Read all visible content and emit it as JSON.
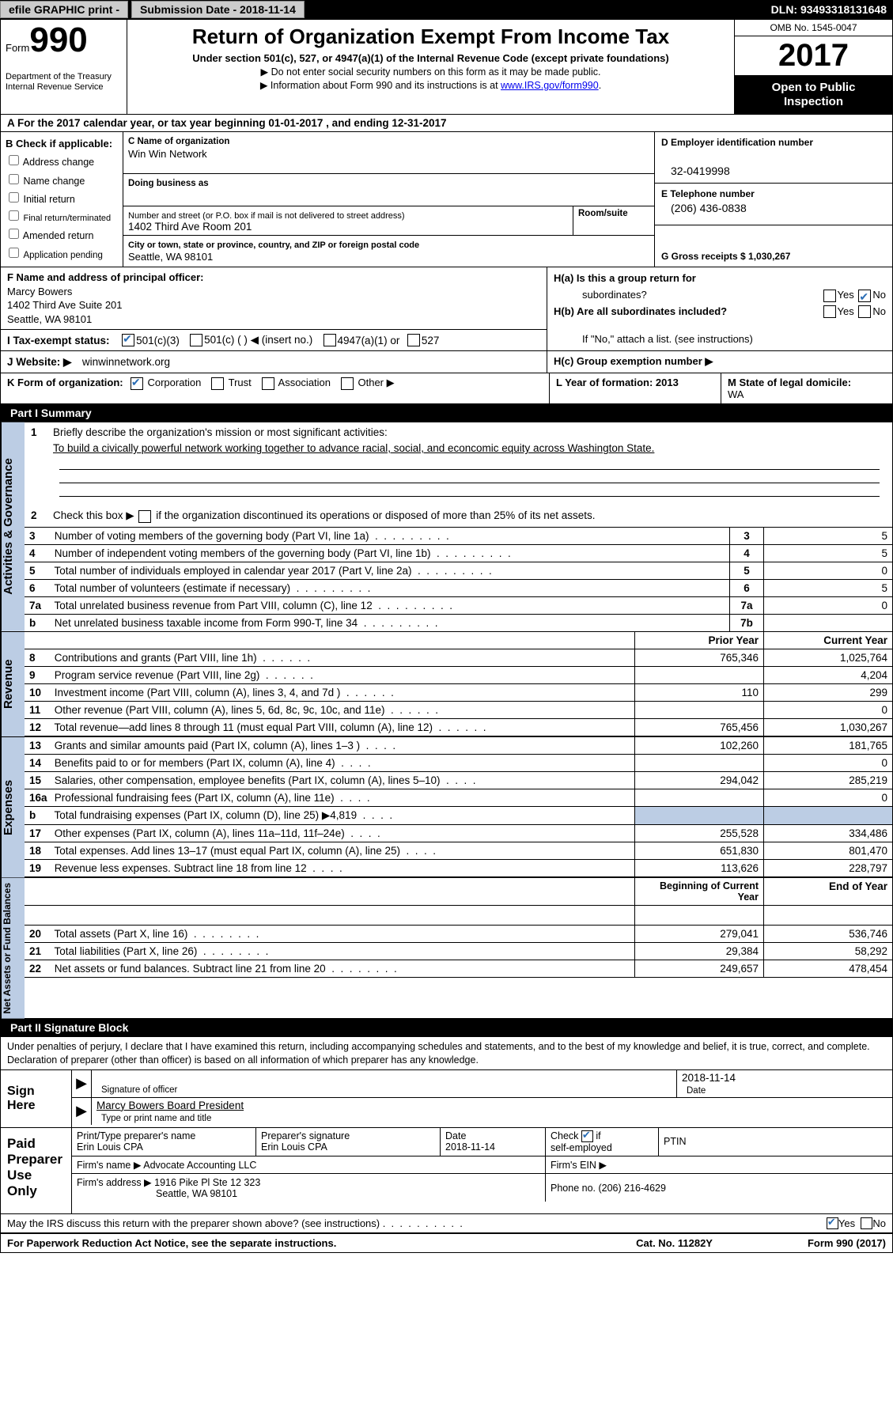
{
  "topbar": {
    "efile": "efile GRAPHIC print -",
    "submission_label": "Submission Date - 2018-11-14",
    "dln_label": "DLN: 93493318131648"
  },
  "header": {
    "form_word": "Form",
    "form_num": "990",
    "dept1": "Department of the Treasury",
    "dept2": "Internal Revenue Service",
    "title": "Return of Organization Exempt From Income Tax",
    "sub": "Under section 501(c), 527, or 4947(a)(1) of the Internal Revenue Code (except private foundations)",
    "note1": "▶ Do not enter social security numbers on this form as it may be made public.",
    "note2_pre": "▶ Information about Form 990 and its instructions is at ",
    "note2_link": "www.IRS.gov/form990",
    "note2_post": ".",
    "omb": "OMB No. 1545-0047",
    "year": "2017",
    "open1": "Open to Public",
    "open2": "Inspection"
  },
  "rowA": "A  For the 2017 calendar year, or tax year beginning 01-01-2017   , and ending 12-31-2017",
  "colB": {
    "label": "B Check if applicable:",
    "items": [
      "Address change",
      "Name change",
      "Initial return",
      "Final return/terminated",
      "Amended return",
      "Application pending"
    ]
  },
  "colC": {
    "name_lab": "C Name of organization",
    "name_val": "Win Win Network",
    "dba_lab": "Doing business as",
    "addr_lab": "Number and street (or P.O. box if mail is not delivered to street address)",
    "addr_val": "1402 Third Ave Room 201",
    "suite_lab": "Room/suite",
    "city_lab": "City or town, state or province, country, and ZIP or foreign postal code",
    "city_val": "Seattle, WA  98101"
  },
  "colD": {
    "ein_lab": "D Employer identification number",
    "ein_val": "32-0419998",
    "tel_lab": "E Telephone number",
    "tel_val": "(206) 436-0838",
    "gross_lab": "G Gross receipts $ 1,030,267"
  },
  "colF": {
    "lab": "F Name and address of principal officer:",
    "l1": "Marcy Bowers",
    "l2": "1402 Third Ave Suite 201",
    "l3": "Seattle, WA  98101"
  },
  "colH": {
    "ha": "H(a)  Is this a group return for",
    "ha2": "subordinates?",
    "hb": "H(b)  Are all subordinates included?",
    "hb_note": "If \"No,\" attach a list. (see instructions)",
    "hc": "H(c)  Group exemption number ▶",
    "yes": "Yes",
    "no": "No"
  },
  "rowI": {
    "lab": "I  Tax-exempt status:",
    "o1": "501(c)(3)",
    "o2": "501(c) (   ) ◀ (insert no.)",
    "o3": "4947(a)(1) or",
    "o4": "527"
  },
  "rowJ": {
    "lab": "J  Website: ▶",
    "val": "winwinnetwork.org"
  },
  "rowK": {
    "lab": "K Form of organization:",
    "o1": "Corporation",
    "o2": "Trust",
    "o3": "Association",
    "o4": "Other ▶"
  },
  "rowL": {
    "l_lab": "L Year of formation: 2013",
    "m_lab": "M State of legal domicile:",
    "m_val": "WA"
  },
  "part1": {
    "header": "Part I      Summary",
    "l1": "Briefly describe the organization's mission or most significant activities:",
    "l1_val": "To build a civically powerful network working together to advance racial, social, and econcomic equity across Washington State.",
    "l2": "Check this box ▶         if the organization discontinued its operations or disposed of more than 25% of its net assets.",
    "gov_rows": [
      {
        "n": "3",
        "d": "Number of voting members of the governing body (Part VI, line 1a)",
        "c": "3",
        "v": "5"
      },
      {
        "n": "4",
        "d": "Number of independent voting members of the governing body (Part VI, line 1b)",
        "c": "4",
        "v": "5"
      },
      {
        "n": "5",
        "d": "Total number of individuals employed in calendar year 2017 (Part V, line 2a)",
        "c": "5",
        "v": "0"
      },
      {
        "n": "6",
        "d": "Total number of volunteers (estimate if necessary)",
        "c": "6",
        "v": "5"
      },
      {
        "n": "7a",
        "d": "Total unrelated business revenue from Part VIII, column (C), line 12",
        "c": "7a",
        "v": "0"
      },
      {
        "n": "b",
        "d": "Net unrelated business taxable income from Form 990-T, line 34",
        "c": "7b",
        "v": ""
      }
    ],
    "rev_header": {
      "py": "Prior Year",
      "cy": "Current Year"
    },
    "rev_rows": [
      {
        "n": "8",
        "d": "Contributions and grants (Part VIII, line 1h)",
        "py": "765,346",
        "cy": "1,025,764"
      },
      {
        "n": "9",
        "d": "Program service revenue (Part VIII, line 2g)",
        "py": "",
        "cy": "4,204"
      },
      {
        "n": "10",
        "d": "Investment income (Part VIII, column (A), lines 3, 4, and 7d )",
        "py": "110",
        "cy": "299"
      },
      {
        "n": "11",
        "d": "Other revenue (Part VIII, column (A), lines 5, 6d, 8c, 9c, 10c, and 11e)",
        "py": "",
        "cy": "0"
      },
      {
        "n": "12",
        "d": "Total revenue—add lines 8 through 11 (must equal Part VIII, column (A), line 12)",
        "py": "765,456",
        "cy": "1,030,267"
      }
    ],
    "exp_rows": [
      {
        "n": "13",
        "d": "Grants and similar amounts paid (Part IX, column (A), lines 1–3 )",
        "py": "102,260",
        "cy": "181,765"
      },
      {
        "n": "14",
        "d": "Benefits paid to or for members (Part IX, column (A), line 4)",
        "py": "",
        "cy": "0"
      },
      {
        "n": "15",
        "d": "Salaries, other compensation, employee benefits (Part IX, column (A), lines 5–10)",
        "py": "294,042",
        "cy": "285,219"
      },
      {
        "n": "16a",
        "d": "Professional fundraising fees (Part IX, column (A), line 11e)",
        "py": "",
        "cy": "0"
      },
      {
        "n": "b",
        "d": "Total fundraising expenses (Part IX, column (D), line 25) ▶4,819",
        "py": "SHADE",
        "cy": "SHADE"
      },
      {
        "n": "17",
        "d": "Other expenses (Part IX, column (A), lines 11a–11d, 11f–24e)",
        "py": "255,528",
        "cy": "334,486"
      },
      {
        "n": "18",
        "d": "Total expenses. Add lines 13–17 (must equal Part IX, column (A), line 25)",
        "py": "651,830",
        "cy": "801,470"
      },
      {
        "n": "19",
        "d": "Revenue less expenses. Subtract line 18 from line 12",
        "py": "113,626",
        "cy": "228,797"
      }
    ],
    "net_header": {
      "py": "Beginning of Current Year",
      "cy": "End of Year"
    },
    "net_rows": [
      {
        "n": "20",
        "d": "Total assets (Part X, line 16)",
        "py": "279,041",
        "cy": "536,746"
      },
      {
        "n": "21",
        "d": "Total liabilities (Part X, line 26)",
        "py": "29,384",
        "cy": "58,292"
      },
      {
        "n": "22",
        "d": "Net assets or fund balances. Subtract line 21 from line 20",
        "py": "249,657",
        "cy": "478,454"
      }
    ]
  },
  "part2": {
    "header": "Part II     Signature Block",
    "declaration": "Under penalties of perjury, I declare that I have examined this return, including accompanying schedules and statements, and to the best of my knowledge and belief, it is true, correct, and complete. Declaration of preparer (other than officer) is based on all information of which preparer has any knowledge.",
    "sign_here": "Sign Here",
    "sig_officer": "Signature of officer",
    "sig_date": "2018-11-14",
    "date_lab": "Date",
    "name_title": "Marcy Bowers  Board President",
    "name_lab": "Type or print name and title",
    "paid": "Paid Preparer Use Only",
    "prep_name_lab": "Print/Type preparer's name",
    "prep_name": "Erin Louis CPA",
    "prep_sig_lab": "Preparer's signature",
    "prep_sig": "Erin Louis CPA",
    "prep_date_lab": "Date",
    "prep_date": "2018-11-14",
    "self_emp": "Check         if self-employed",
    "ptin": "PTIN",
    "firm_name_lab": "Firm's name      ▶",
    "firm_name": "Advocate Accounting LLC",
    "firm_ein_lab": "Firm's EIN ▶",
    "firm_addr_lab": "Firm's address ▶",
    "firm_addr1": "1916 Pike Pl Ste 12 323",
    "firm_addr2": "Seattle, WA  98101",
    "firm_phone_lab": "Phone no. (206) 216-4629"
  },
  "footer": {
    "discuss": "May the IRS discuss this return with the preparer shown above? (see instructions)",
    "yes": "Yes",
    "no": "No",
    "paperwork": "For Paperwork Reduction Act Notice, see the separate instructions.",
    "cat": "Cat. No. 11282Y",
    "form": "Form 990 (2017)"
  },
  "vtabs": {
    "gov": "Activities & Governance",
    "rev": "Revenue",
    "exp": "Expenses",
    "net": "Net Assets or Fund Balances"
  }
}
